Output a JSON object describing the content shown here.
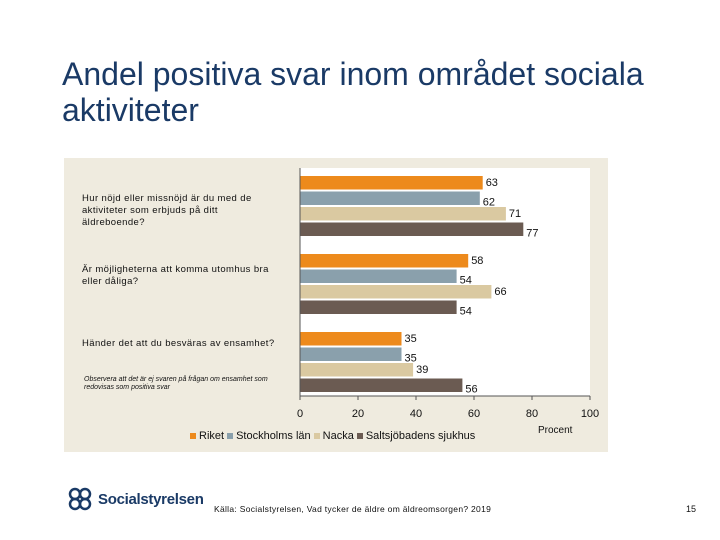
{
  "slide": {
    "title": "Andel positiva svar inom området sociala aktiviteter",
    "note": "Observera att det är ej svaren på frågan om ensamhet som redovisas som positiva svar",
    "source": "Källa: Socialstyrelsen, Vad tycker de äldre om äldreomsorgen? 2019",
    "page_number": "15",
    "logo_text": "Socialstyrelsen"
  },
  "colors": {
    "Riket": "#ed8a1c",
    "Stockholms län": "#8aa0ac",
    "Nacka": "#dac9a1",
    "Saltsjöbadens sjukhus": "#6b5b52",
    "panel": "#efebdf",
    "title": "#1a3a66"
  },
  "chart_data": {
    "type": "bar",
    "orientation": "horizontal",
    "categories": [
      "Hur nöjd eller missnöjd är du med de aktiviteter som erbjuds på ditt äldreboende?",
      "Är möjligheterna att komma utomhus bra eller dåliga?",
      "Händer det att du besväras av ensamhet?"
    ],
    "series": [
      {
        "name": "Riket",
        "values": [
          63,
          58,
          35
        ]
      },
      {
        "name": "Stockholms län",
        "values": [
          62,
          54,
          35
        ]
      },
      {
        "name": "Nacka",
        "values": [
          71,
          66,
          39
        ]
      },
      {
        "name": "Saltsjöbadens sjukhus",
        "values": [
          77,
          54,
          56
        ]
      }
    ],
    "xlabel": "Procent",
    "xlim": [
      0,
      100
    ],
    "xticks": [
      0,
      20,
      40,
      60,
      80,
      100
    ],
    "legend": "bottom",
    "grid": false
  }
}
